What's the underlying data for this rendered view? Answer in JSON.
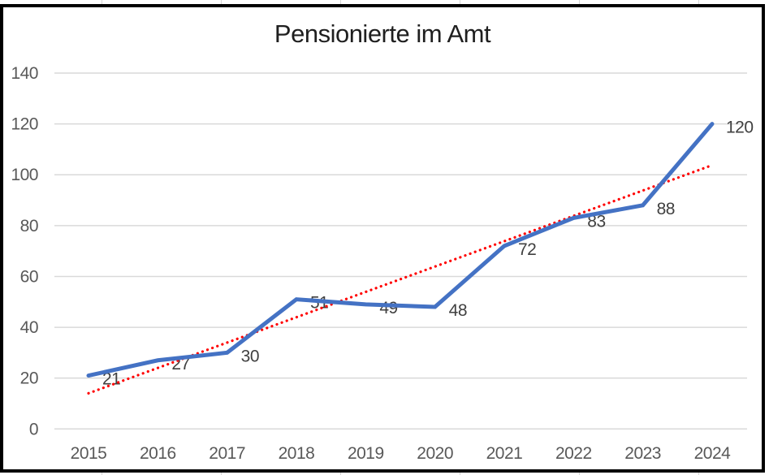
{
  "chart_data": {
    "type": "line",
    "title": "Pensionierte im Amt",
    "categories": [
      "2015",
      "2016",
      "2017",
      "2018",
      "2019",
      "2020",
      "2021",
      "2022",
      "2023",
      "2024"
    ],
    "series": [
      {
        "values": [
          21,
          27,
          30,
          51,
          49,
          48,
          72,
          83,
          88,
          120
        ],
        "color": "#4472C4"
      }
    ],
    "data_labels": [
      "21",
      "27",
      "30",
      "51",
      "49",
      "48",
      "72",
      "83",
      "88",
      "120"
    ],
    "data_label_position": "right",
    "trendline": {
      "type": "linear",
      "style": "dotted",
      "color": "#FF0000"
    },
    "xlabel": "",
    "ylabel": "",
    "ylim": [
      0,
      140
    ],
    "yticks": [
      0,
      20,
      40,
      60,
      80,
      100,
      120,
      140
    ],
    "grid": "horizontal",
    "legend": "none"
  },
  "colors": {
    "series_line": "#4472C4",
    "trendline": "#FF0000",
    "gridline": "#D9D9D9",
    "tick_label": "#595959",
    "data_label": "#404040",
    "title": "#1F1F1F",
    "chart_border": "#000000",
    "cell_gridline": "#D6D6D6"
  }
}
